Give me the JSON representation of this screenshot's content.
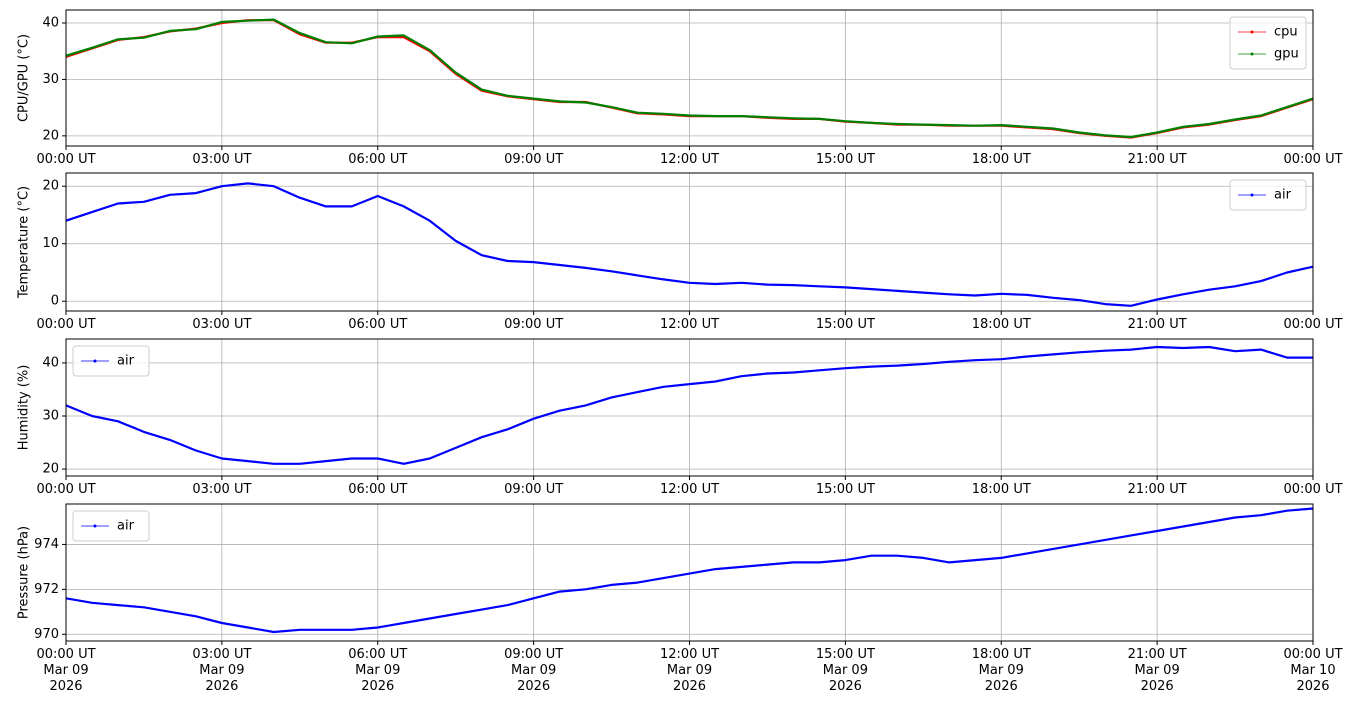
{
  "chart_data": [
    {
      "type": "line",
      "ylabel": "CPU/GPU (°C)",
      "x": [
        "2026-03-09 00:00",
        "2026-03-09 00:30",
        "2026-03-09 01:00",
        "2026-03-09 01:30",
        "2026-03-09 02:00",
        "2026-03-09 02:30",
        "2026-03-09 03:00",
        "2026-03-09 03:30",
        "2026-03-09 04:00",
        "2026-03-09 04:30",
        "2026-03-09 05:00",
        "2026-03-09 05:30",
        "2026-03-09 06:00",
        "2026-03-09 06:30",
        "2026-03-09 07:00",
        "2026-03-09 07:30",
        "2026-03-09 08:00",
        "2026-03-09 08:30",
        "2026-03-09 09:00",
        "2026-03-09 09:30",
        "2026-03-09 10:00",
        "2026-03-09 10:30",
        "2026-03-09 11:00",
        "2026-03-09 11:30",
        "2026-03-09 12:00",
        "2026-03-09 12:30",
        "2026-03-09 13:00",
        "2026-03-09 13:30",
        "2026-03-09 14:00",
        "2026-03-09 14:30",
        "2026-03-09 15:00",
        "2026-03-09 15:30",
        "2026-03-09 16:00",
        "2026-03-09 16:30",
        "2026-03-09 17:00",
        "2026-03-09 17:30",
        "2026-03-09 18:00",
        "2026-03-09 18:30",
        "2026-03-09 19:00",
        "2026-03-09 19:30",
        "2026-03-09 20:00",
        "2026-03-09 20:30",
        "2026-03-09 21:00",
        "2026-03-09 21:30",
        "2026-03-09 22:00",
        "2026-03-09 22:30",
        "2026-03-09 23:00",
        "2026-03-09 23:30",
        "2026-03-10 00:00"
      ],
      "series": [
        {
          "name": "cpu",
          "color": "red",
          "values": [
            34,
            35.5,
            37,
            37.5,
            38.5,
            39,
            40,
            40.5,
            40.5,
            38,
            36.5,
            36.5,
            37.5,
            37.5,
            35,
            31,
            28,
            27,
            26.5,
            26,
            26,
            25,
            24,
            23.8,
            23.5,
            23.5,
            23.5,
            23.2,
            23,
            23,
            22.5,
            22.3,
            22,
            22,
            21.8,
            21.8,
            21.8,
            21.5,
            21.2,
            20.5,
            20,
            19.7,
            20.5,
            21.5,
            22,
            22.8,
            23.5,
            25,
            26.5
          ]
        },
        {
          "name": "gpu",
          "color": "green",
          "values": [
            34.2,
            35.6,
            37.1,
            37.4,
            38.6,
            38.9,
            40.2,
            40.4,
            40.6,
            38.2,
            36.6,
            36.4,
            37.6,
            37.8,
            35.2,
            31.2,
            28.2,
            27.1,
            26.6,
            26.1,
            25.9,
            25.1,
            24.1,
            23.9,
            23.6,
            23.5,
            23.5,
            23.3,
            23.1,
            23,
            22.6,
            22.3,
            22.1,
            22,
            21.9,
            21.8,
            21.9,
            21.6,
            21.3,
            20.6,
            20.1,
            19.8,
            20.6,
            21.6,
            22.1,
            22.9,
            23.6,
            25.1,
            26.6
          ]
        }
      ],
      "ylim": [
        18.2,
        42.3
      ],
      "yticks": [
        20,
        30,
        40
      ],
      "xlim": [
        "2026-03-09 00:00",
        "2026-03-10 00:00"
      ],
      "xticks": [
        {
          "value": "2026-03-09 00:00",
          "label": "00:00 UT"
        },
        {
          "value": "2026-03-09 03:00",
          "label": "03:00 UT"
        },
        {
          "value": "2026-03-09 06:00",
          "label": "06:00 UT"
        },
        {
          "value": "2026-03-09 09:00",
          "label": "09:00 UT"
        },
        {
          "value": "2026-03-09 12:00",
          "label": "12:00 UT"
        },
        {
          "value": "2026-03-09 15:00",
          "label": "15:00 UT"
        },
        {
          "value": "2026-03-09 18:00",
          "label": "18:00 UT"
        },
        {
          "value": "2026-03-09 21:00",
          "label": "21:00 UT"
        },
        {
          "value": "2026-03-10 00:00",
          "label": "00:00 UT"
        }
      ],
      "grid": true,
      "legend": "upper right"
    },
    {
      "type": "line",
      "ylabel": "Temperature (°C)",
      "x": [
        "2026-03-09 00:00",
        "2026-03-09 00:30",
        "2026-03-09 01:00",
        "2026-03-09 01:30",
        "2026-03-09 02:00",
        "2026-03-09 02:30",
        "2026-03-09 03:00",
        "2026-03-09 03:30",
        "2026-03-09 04:00",
        "2026-03-09 04:30",
        "2026-03-09 05:00",
        "2026-03-09 05:30",
        "2026-03-09 06:00",
        "2026-03-09 06:30",
        "2026-03-09 07:00",
        "2026-03-09 07:30",
        "2026-03-09 08:00",
        "2026-03-09 08:30",
        "2026-03-09 09:00",
        "2026-03-09 09:30",
        "2026-03-09 10:00",
        "2026-03-09 10:30",
        "2026-03-09 11:00",
        "2026-03-09 11:30",
        "2026-03-09 12:00",
        "2026-03-09 12:30",
        "2026-03-09 13:00",
        "2026-03-09 13:30",
        "2026-03-09 14:00",
        "2026-03-09 14:30",
        "2026-03-09 15:00",
        "2026-03-09 15:30",
        "2026-03-09 16:00",
        "2026-03-09 16:30",
        "2026-03-09 17:00",
        "2026-03-09 17:30",
        "2026-03-09 18:00",
        "2026-03-09 18:30",
        "2026-03-09 19:00",
        "2026-03-09 19:30",
        "2026-03-09 20:00",
        "2026-03-09 20:30",
        "2026-03-09 21:00",
        "2026-03-09 21:30",
        "2026-03-09 22:00",
        "2026-03-09 22:30",
        "2026-03-09 23:00",
        "2026-03-09 23:30",
        "2026-03-10 00:00"
      ],
      "series": [
        {
          "name": "air",
          "color": "blue",
          "values": [
            14,
            15.5,
            17,
            17.3,
            18.5,
            18.8,
            20,
            20.5,
            20,
            18,
            16.5,
            16.5,
            18.3,
            16.5,
            14,
            10.5,
            8,
            7,
            6.8,
            6.3,
            5.8,
            5.2,
            4.5,
            3.8,
            3.2,
            3,
            3.2,
            2.9,
            2.8,
            2.6,
            2.4,
            2.1,
            1.8,
            1.5,
            1.2,
            1,
            1.3,
            1.1,
            0.6,
            0.2,
            -0.5,
            -0.8,
            0.3,
            1.2,
            2,
            2.6,
            3.5,
            5,
            6
          ]
        }
      ],
      "ylim": [
        -1.7,
        22.3
      ],
      "yticks": [
        0,
        10,
        20
      ],
      "xlim": [
        "2026-03-09 00:00",
        "2026-03-10 00:00"
      ],
      "xticks": [
        {
          "value": "2026-03-09 00:00",
          "label": "00:00 UT"
        },
        {
          "value": "2026-03-09 03:00",
          "label": "03:00 UT"
        },
        {
          "value": "2026-03-09 06:00",
          "label": "06:00 UT"
        },
        {
          "value": "2026-03-09 09:00",
          "label": "09:00 UT"
        },
        {
          "value": "2026-03-09 12:00",
          "label": "12:00 UT"
        },
        {
          "value": "2026-03-09 15:00",
          "label": "15:00 UT"
        },
        {
          "value": "2026-03-09 18:00",
          "label": "18:00 UT"
        },
        {
          "value": "2026-03-09 21:00",
          "label": "21:00 UT"
        },
        {
          "value": "2026-03-10 00:00",
          "label": "00:00 UT"
        }
      ],
      "grid": true,
      "legend": "upper right"
    },
    {
      "type": "line",
      "ylabel": "Humidity (%)",
      "x": [
        "2026-03-09 00:00",
        "2026-03-09 00:30",
        "2026-03-09 01:00",
        "2026-03-09 01:30",
        "2026-03-09 02:00",
        "2026-03-09 02:30",
        "2026-03-09 03:00",
        "2026-03-09 03:30",
        "2026-03-09 04:00",
        "2026-03-09 04:30",
        "2026-03-09 05:00",
        "2026-03-09 05:30",
        "2026-03-09 06:00",
        "2026-03-09 06:30",
        "2026-03-09 07:00",
        "2026-03-09 07:30",
        "2026-03-09 08:00",
        "2026-03-09 08:30",
        "2026-03-09 09:00",
        "2026-03-09 09:30",
        "2026-03-09 10:00",
        "2026-03-09 10:30",
        "2026-03-09 11:00",
        "2026-03-09 11:30",
        "2026-03-09 12:00",
        "2026-03-09 12:30",
        "2026-03-09 13:00",
        "2026-03-09 13:30",
        "2026-03-09 14:00",
        "2026-03-09 14:30",
        "2026-03-09 15:00",
        "2026-03-09 15:30",
        "2026-03-09 16:00",
        "2026-03-09 16:30",
        "2026-03-09 17:00",
        "2026-03-09 17:30",
        "2026-03-09 18:00",
        "2026-03-09 18:30",
        "2026-03-09 19:00",
        "2026-03-09 19:30",
        "2026-03-09 20:00",
        "2026-03-09 20:30",
        "2026-03-09 21:00",
        "2026-03-09 21:30",
        "2026-03-09 22:00",
        "2026-03-09 22:30",
        "2026-03-09 23:00",
        "2026-03-09 23:30",
        "2026-03-10 00:00"
      ],
      "series": [
        {
          "name": "air",
          "color": "blue",
          "values": [
            32,
            30,
            29,
            27,
            25.5,
            23.5,
            22,
            21.5,
            21,
            21,
            21.5,
            22,
            22,
            21,
            22,
            24,
            26,
            27.5,
            29.5,
            31,
            32,
            33.5,
            34.5,
            35.5,
            36,
            36.5,
            37.5,
            38,
            38.2,
            38.6,
            39,
            39.3,
            39.5,
            39.8,
            40.2,
            40.5,
            40.7,
            41.2,
            41.6,
            42,
            42.3,
            42.5,
            43,
            42.8,
            43,
            42.2,
            42.5,
            41,
            41
          ]
        }
      ],
      "ylim": [
        18.7,
        44.5
      ],
      "yticks": [
        20,
        30,
        40
      ],
      "xlim": [
        "2026-03-09 00:00",
        "2026-03-10 00:00"
      ],
      "xticks": [
        {
          "value": "2026-03-09 00:00",
          "label": "00:00 UT"
        },
        {
          "value": "2026-03-09 03:00",
          "label": "03:00 UT"
        },
        {
          "value": "2026-03-09 06:00",
          "label": "06:00 UT"
        },
        {
          "value": "2026-03-09 09:00",
          "label": "09:00 UT"
        },
        {
          "value": "2026-03-09 12:00",
          "label": "12:00 UT"
        },
        {
          "value": "2026-03-09 15:00",
          "label": "15:00 UT"
        },
        {
          "value": "2026-03-09 18:00",
          "label": "18:00 UT"
        },
        {
          "value": "2026-03-09 21:00",
          "label": "21:00 UT"
        },
        {
          "value": "2026-03-10 00:00",
          "label": "00:00 UT"
        }
      ],
      "grid": true,
      "legend": "upper left"
    },
    {
      "type": "line",
      "ylabel": "Pressure (hPa)",
      "x": [
        "2026-03-09 00:00",
        "2026-03-09 00:30",
        "2026-03-09 01:00",
        "2026-03-09 01:30",
        "2026-03-09 02:00",
        "2026-03-09 02:30",
        "2026-03-09 03:00",
        "2026-03-09 03:30",
        "2026-03-09 04:00",
        "2026-03-09 04:30",
        "2026-03-09 05:00",
        "2026-03-09 05:30",
        "2026-03-09 06:00",
        "2026-03-09 06:30",
        "2026-03-09 07:00",
        "2026-03-09 07:30",
        "2026-03-09 08:00",
        "2026-03-09 08:30",
        "2026-03-09 09:00",
        "2026-03-09 09:30",
        "2026-03-09 10:00",
        "2026-03-09 10:30",
        "2026-03-09 11:00",
        "2026-03-09 11:30",
        "2026-03-09 12:00",
        "2026-03-09 12:30",
        "2026-03-09 13:00",
        "2026-03-09 13:30",
        "2026-03-09 14:00",
        "2026-03-09 14:30",
        "2026-03-09 15:00",
        "2026-03-09 15:30",
        "2026-03-09 16:00",
        "2026-03-09 16:30",
        "2026-03-09 17:00",
        "2026-03-09 17:30",
        "2026-03-09 18:00",
        "2026-03-09 18:30",
        "2026-03-09 19:00",
        "2026-03-09 19:30",
        "2026-03-09 20:00",
        "2026-03-09 20:30",
        "2026-03-09 21:00",
        "2026-03-09 21:30",
        "2026-03-09 22:00",
        "2026-03-09 22:30",
        "2026-03-09 23:00",
        "2026-03-09 23:30",
        "2026-03-10 00:00"
      ],
      "series": [
        {
          "name": "air",
          "color": "blue",
          "values": [
            971.6,
            971.4,
            971.3,
            971.2,
            971,
            970.8,
            970.5,
            970.3,
            970.1,
            970.2,
            970.2,
            970.2,
            970.3,
            970.5,
            970.7,
            970.9,
            971.1,
            971.3,
            971.6,
            971.9,
            972,
            972.2,
            972.3,
            972.5,
            972.7,
            972.9,
            973,
            973.1,
            973.2,
            973.2,
            973.3,
            973.5,
            973.5,
            973.4,
            973.2,
            973.3,
            973.4,
            973.6,
            973.8,
            974,
            974.2,
            974.4,
            974.6,
            974.8,
            975,
            975.2,
            975.3,
            975.5,
            975.6
          ]
        }
      ],
      "ylim": [
        969.7,
        975.8
      ],
      "yticks": [
        970,
        972,
        974
      ],
      "xlim": [
        "2026-03-09 00:00",
        "2026-03-10 00:00"
      ],
      "xticks": [
        {
          "value": "2026-03-09 00:00",
          "label": "00:00 UT\nMar 09\n2026"
        },
        {
          "value": "2026-03-09 03:00",
          "label": "03:00 UT\nMar 09\n2026"
        },
        {
          "value": "2026-03-09 06:00",
          "label": "06:00 UT\nMar 09\n2026"
        },
        {
          "value": "2026-03-09 09:00",
          "label": "09:00 UT\nMar 09\n2026"
        },
        {
          "value": "2026-03-09 12:00",
          "label": "12:00 UT\nMar 09\n2026"
        },
        {
          "value": "2026-03-09 15:00",
          "label": "15:00 UT\nMar 09\n2026"
        },
        {
          "value": "2026-03-09 18:00",
          "label": "18:00 UT\nMar 09\n2026"
        },
        {
          "value": "2026-03-09 21:00",
          "label": "21:00 UT\nMar 09\n2026"
        },
        {
          "value": "2026-03-10 00:00",
          "label": "00:00 UT\nMar 10\n2026"
        }
      ],
      "grid": true,
      "legend": "upper left"
    }
  ]
}
